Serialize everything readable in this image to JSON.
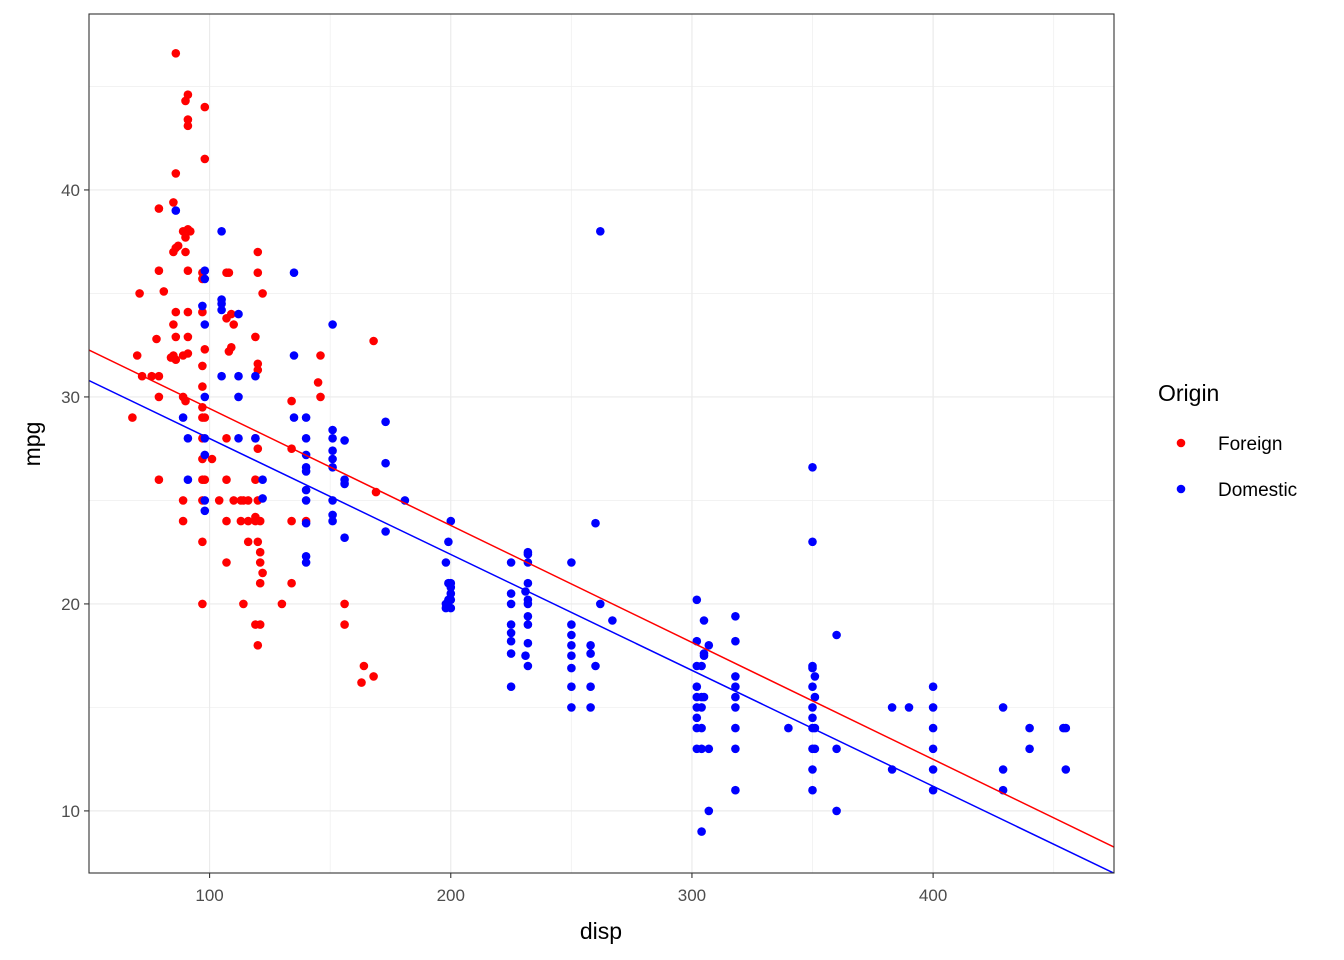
{
  "chart_data": {
    "type": "scatter",
    "xlabel": "disp",
    "ylabel": "mpg",
    "xlim": [
      50,
      475
    ],
    "ylim": [
      7,
      48.5
    ],
    "x_ticks": [
      100,
      200,
      300,
      400
    ],
    "y_ticks": [
      10,
      20,
      30,
      40
    ],
    "grid": true,
    "legend": {
      "title": "Origin",
      "position": "right",
      "entries": [
        {
          "name": "Foreign",
          "color": "#ff0000"
        },
        {
          "name": "Domestic",
          "color": "#0000ff"
        }
      ]
    },
    "series": [
      {
        "name": "Foreign",
        "color": "#ff0000",
        "trend": {
          "intercept": 35.09,
          "slope": -0.0565
        },
        "points": [
          [
            86,
            46.6
          ],
          [
            91,
            44.6
          ],
          [
            90,
            44.3
          ],
          [
            98,
            44
          ],
          [
            91,
            43.4
          ],
          [
            91,
            43.1
          ],
          [
            98,
            41.5
          ],
          [
            86,
            40.8
          ],
          [
            79,
            39.1
          ],
          [
            85,
            39.4
          ],
          [
            91,
            38.1
          ],
          [
            89,
            38
          ],
          [
            92,
            38
          ],
          [
            90,
            37.7
          ],
          [
            87,
            37.3
          ],
          [
            86,
            37.2
          ],
          [
            85,
            37
          ],
          [
            90,
            37
          ],
          [
            120,
            37
          ],
          [
            79,
            36.1
          ],
          [
            97,
            36
          ],
          [
            91,
            36.1
          ],
          [
            107,
            36
          ],
          [
            108,
            36
          ],
          [
            120,
            36
          ],
          [
            97,
            35.7
          ],
          [
            81,
            35.1
          ],
          [
            71,
            35
          ],
          [
            122,
            35
          ],
          [
            91,
            34.1
          ],
          [
            86,
            34.1
          ],
          [
            97,
            34.1
          ],
          [
            109,
            34
          ],
          [
            107,
            33.8
          ],
          [
            110,
            33.5
          ],
          [
            85,
            33.5
          ],
          [
            86,
            32.9
          ],
          [
            91,
            32.9
          ],
          [
            78,
            32.8
          ],
          [
            119,
            32.9
          ],
          [
            91,
            32.1
          ],
          [
            85,
            32
          ],
          [
            89,
            32
          ],
          [
            98,
            32.3
          ],
          [
            108,
            32.2
          ],
          [
            109,
            32.4
          ],
          [
            146,
            32
          ],
          [
            70,
            32
          ],
          [
            84,
            31.9
          ],
          [
            86,
            31.8
          ],
          [
            97,
            31.5
          ],
          [
            120,
            31.6
          ],
          [
            168,
            32.7
          ],
          [
            120,
            31.3
          ],
          [
            72,
            31
          ],
          [
            76,
            31
          ],
          [
            79,
            31
          ],
          [
            97,
            30.5
          ],
          [
            145,
            30.7
          ],
          [
            89,
            30
          ],
          [
            90,
            29.8
          ],
          [
            79,
            30
          ],
          [
            97,
            29.5
          ],
          [
            134,
            29.8
          ],
          [
            146,
            30
          ],
          [
            68,
            29
          ],
          [
            97,
            29
          ],
          [
            98,
            29
          ],
          [
            97,
            28
          ],
          [
            107,
            28
          ],
          [
            119,
            28
          ],
          [
            120,
            27.5
          ],
          [
            134,
            27.5
          ],
          [
            97,
            27
          ],
          [
            101,
            27
          ],
          [
            98,
            26
          ],
          [
            107,
            26
          ],
          [
            119,
            26
          ],
          [
            79,
            26
          ],
          [
            97,
            26
          ],
          [
            169,
            25.4
          ],
          [
            97,
            25
          ],
          [
            104,
            25
          ],
          [
            110,
            25
          ],
          [
            113,
            25
          ],
          [
            114,
            25
          ],
          [
            116,
            25
          ],
          [
            89,
            25
          ],
          [
            120,
            25
          ],
          [
            119,
            24.2
          ],
          [
            140,
            24
          ],
          [
            89,
            24
          ],
          [
            107,
            24
          ],
          [
            113,
            24
          ],
          [
            116,
            24
          ],
          [
            119,
            24
          ],
          [
            121,
            24
          ],
          [
            134,
            24
          ],
          [
            97,
            23
          ],
          [
            116,
            23
          ],
          [
            120,
            23
          ],
          [
            121,
            22
          ],
          [
            122,
            21.5
          ],
          [
            107,
            22
          ],
          [
            121,
            21
          ],
          [
            134,
            21
          ],
          [
            121,
            19
          ],
          [
            97,
            20
          ],
          [
            114,
            20
          ],
          [
            130,
            20
          ],
          [
            156,
            20
          ],
          [
            119,
            19
          ],
          [
            156,
            19
          ],
          [
            120,
            18
          ],
          [
            164,
            17
          ],
          [
            163,
            16.2
          ],
          [
            168,
            16.5
          ],
          [
            121,
            22.5
          ]
        ]
      },
      {
        "name": "Domestic",
        "color": "#0000ff",
        "trend": {
          "intercept": 33.59,
          "slope": -0.056
        },
        "points": [
          [
            262,
            38
          ],
          [
            105,
            38
          ],
          [
            86,
            39
          ],
          [
            98,
            36.1
          ],
          [
            98,
            35.7
          ],
          [
            135,
            36
          ],
          [
            105,
            34.7
          ],
          [
            105,
            34.5
          ],
          [
            97,
            34.4
          ],
          [
            98,
            33.5
          ],
          [
            151,
            33.5
          ],
          [
            112,
            34
          ],
          [
            105,
            34.2
          ],
          [
            135,
            32
          ],
          [
            119,
            31
          ],
          [
            112,
            31
          ],
          [
            105,
            31
          ],
          [
            112,
            30
          ],
          [
            98,
            30
          ],
          [
            89,
            29
          ],
          [
            140,
            29
          ],
          [
            135,
            29
          ],
          [
            173,
            28.8
          ],
          [
            151,
            28.4
          ],
          [
            151,
            28
          ],
          [
            156,
            27.9
          ],
          [
            140,
            28
          ],
          [
            119,
            28
          ],
          [
            98,
            28
          ],
          [
            91,
            28
          ],
          [
            112,
            28
          ],
          [
            151,
            27.4
          ],
          [
            140,
            27.2
          ],
          [
            151,
            27
          ],
          [
            173,
            26.8
          ],
          [
            98,
            27.2
          ],
          [
            140,
            26.6
          ],
          [
            151,
            26.6
          ],
          [
            140,
            26.4
          ],
          [
            156,
            26
          ],
          [
            156,
            25.8
          ],
          [
            122,
            26
          ],
          [
            91,
            26
          ],
          [
            98,
            25
          ],
          [
            181,
            25
          ],
          [
            140,
            25.5
          ],
          [
            140,
            25
          ],
          [
            122,
            25.1
          ],
          [
            151,
            25
          ],
          [
            151,
            24.3
          ],
          [
            98,
            24.5
          ],
          [
            151,
            24
          ],
          [
            140,
            23.9
          ],
          [
            200,
            24
          ],
          [
            260,
            23.9
          ],
          [
            173,
            23.5
          ],
          [
            156,
            23.2
          ],
          [
            199,
            23
          ],
          [
            232,
            22.5
          ],
          [
            232,
            22.4
          ],
          [
            225,
            22
          ],
          [
            232,
            22
          ],
          [
            250,
            22
          ],
          [
            198,
            22
          ],
          [
            140,
            22.3
          ],
          [
            140,
            22
          ],
          [
            200,
            21
          ],
          [
            199,
            21
          ],
          [
            200,
            20.8
          ],
          [
            225,
            20.5
          ],
          [
            231,
            20.6
          ],
          [
            232,
            21
          ],
          [
            232,
            20.2
          ],
          [
            232,
            20
          ],
          [
            225,
            20
          ],
          [
            198,
            20
          ],
          [
            199,
            20.2
          ],
          [
            200,
            20.5
          ],
          [
            200,
            19.8
          ],
          [
            198,
            19.8
          ],
          [
            200,
            20.2
          ],
          [
            232,
            19.4
          ],
          [
            225,
            19
          ],
          [
            250,
            19
          ],
          [
            232,
            19
          ],
          [
            225,
            18.6
          ],
          [
            258,
            18
          ],
          [
            250,
            18.5
          ],
          [
            225,
            18.2
          ],
          [
            232,
            18.1
          ],
          [
            250,
            18
          ],
          [
            302,
            18.2
          ],
          [
            305,
            17.5
          ],
          [
            318,
            18.2
          ],
          [
            258,
            17.6
          ],
          [
            250,
            17.5
          ],
          [
            232,
            17
          ],
          [
            260,
            17
          ],
          [
            302,
            17
          ],
          [
            304,
            17
          ],
          [
            305,
            17.6
          ],
          [
            231,
            17.5
          ],
          [
            225,
            17.6
          ],
          [
            250,
            16.9
          ],
          [
            318,
            16.5
          ],
          [
            350,
            17
          ],
          [
            351,
            16.5
          ],
          [
            350,
            16.9
          ],
          [
            225,
            16
          ],
          [
            250,
            16
          ],
          [
            258,
            16
          ],
          [
            302,
            16
          ],
          [
            304,
            15.5
          ],
          [
            302,
            15.5
          ],
          [
            305,
            15.5
          ],
          [
            318,
            16
          ],
          [
            318,
            15.5
          ],
          [
            350,
            16
          ],
          [
            351,
            15.5
          ],
          [
            250,
            15
          ],
          [
            258,
            15
          ],
          [
            302,
            15
          ],
          [
            304,
            15
          ],
          [
            318,
            15
          ],
          [
            350,
            15
          ],
          [
            383,
            15
          ],
          [
            390,
            15
          ],
          [
            400,
            15
          ],
          [
            400,
            16
          ],
          [
            429,
            15
          ],
          [
            302,
            14.5
          ],
          [
            350,
            14.5
          ],
          [
            302,
            14
          ],
          [
            304,
            14
          ],
          [
            318,
            14
          ],
          [
            340,
            14
          ],
          [
            350,
            14
          ],
          [
            351,
            14
          ],
          [
            400,
            14
          ],
          [
            440,
            14
          ],
          [
            454,
            14
          ],
          [
            455,
            14
          ],
          [
            302,
            13
          ],
          [
            304,
            13
          ],
          [
            307,
            13
          ],
          [
            318,
            13
          ],
          [
            350,
            13
          ],
          [
            351,
            13
          ],
          [
            360,
            13
          ],
          [
            400,
            13
          ],
          [
            440,
            13
          ],
          [
            350,
            12
          ],
          [
            383,
            12
          ],
          [
            400,
            12
          ],
          [
            429,
            12
          ],
          [
            455,
            12
          ],
          [
            318,
            11
          ],
          [
            350,
            11
          ],
          [
            400,
            11
          ],
          [
            429,
            11
          ],
          [
            307,
            10
          ],
          [
            360,
            10
          ],
          [
            304,
            9
          ],
          [
            350,
            26.6
          ],
          [
            350,
            23
          ],
          [
            305,
            19.2
          ],
          [
            318,
            19.4
          ],
          [
            360,
            18.5
          ],
          [
            262,
            20
          ],
          [
            267,
            19.2
          ],
          [
            302,
            20.2
          ],
          [
            307,
            18
          ]
        ]
      }
    ]
  }
}
